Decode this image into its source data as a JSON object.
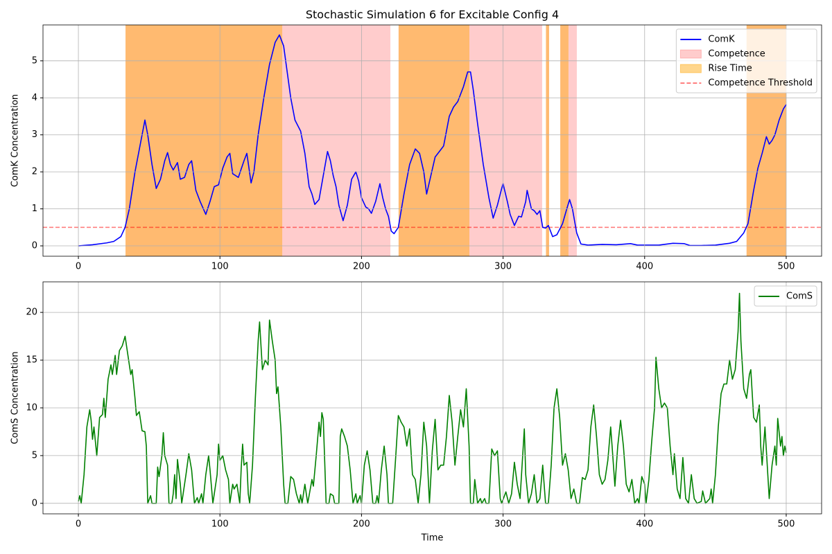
{
  "chart_data": [
    {
      "type": "line",
      "title": "Stochastic Simulation 6 for Excitable Config 4",
      "y_label": "ComK Concentration",
      "x": [
        0,
        10,
        20,
        25,
        30,
        33,
        36,
        40,
        44,
        47,
        49,
        52,
        55,
        58,
        61,
        63,
        65,
        67,
        70,
        72,
        75,
        78,
        80,
        83,
        86,
        90,
        93,
        96,
        99,
        102,
        105,
        107,
        109,
        113,
        117,
        119,
        122,
        124,
        127,
        131,
        135,
        139,
        142,
        145,
        150,
        153,
        157,
        160,
        163,
        165,
        167,
        170,
        173,
        176,
        178,
        180,
        182,
        184,
        187,
        190,
        193,
        196,
        198,
        200,
        203,
        205,
        207,
        210,
        213,
        215,
        217,
        219,
        221,
        223,
        226,
        230,
        234,
        238,
        241,
        244,
        246,
        249,
        252,
        256,
        258,
        262,
        265,
        268,
        272,
        275,
        277,
        279,
        282,
        286,
        290,
        293,
        296,
        299,
        300,
        303,
        305,
        308,
        311,
        313,
        316,
        317,
        320,
        322,
        324,
        326,
        328,
        330,
        332,
        335,
        338,
        342,
        345,
        347,
        349,
        352,
        355,
        360,
        370,
        380,
        390,
        395,
        410,
        420,
        428,
        432,
        440,
        450,
        460,
        465,
        470,
        473,
        477,
        480,
        483,
        486,
        488,
        490,
        492,
        495,
        498,
        500
      ],
      "series": [
        {
          "name": "ComK",
          "color": "#0000ff",
          "values": [
            0,
            0.03,
            0.08,
            0.12,
            0.25,
            0.5,
            1.0,
            2.0,
            2.8,
            3.4,
            3.0,
            2.2,
            1.55,
            1.8,
            2.3,
            2.52,
            2.2,
            2.05,
            2.25,
            1.8,
            1.85,
            2.2,
            2.3,
            1.5,
            1.2,
            0.85,
            1.2,
            1.6,
            1.65,
            2.1,
            2.4,
            2.5,
            1.95,
            1.85,
            2.3,
            2.5,
            1.7,
            2.0,
            3.0,
            4.0,
            4.9,
            5.5,
            5.7,
            5.4,
            4.0,
            3.4,
            3.1,
            2.5,
            1.6,
            1.4,
            1.12,
            1.25,
            1.9,
            2.55,
            2.3,
            1.9,
            1.6,
            1.1,
            0.68,
            1.1,
            1.8,
            2.0,
            1.75,
            1.3,
            1.05,
            1.0,
            0.88,
            1.2,
            1.68,
            1.3,
            1.0,
            0.8,
            0.4,
            0.33,
            0.5,
            1.4,
            2.2,
            2.62,
            2.5,
            2.0,
            1.4,
            1.9,
            2.4,
            2.6,
            2.7,
            3.5,
            3.75,
            3.9,
            4.3,
            4.7,
            4.7,
            4.2,
            3.3,
            2.2,
            1.3,
            0.75,
            1.1,
            1.55,
            1.68,
            1.2,
            0.85,
            0.55,
            0.8,
            0.78,
            1.2,
            1.5,
            1.0,
            0.95,
            0.85,
            0.95,
            0.5,
            0.48,
            0.55,
            0.25,
            0.3,
            0.6,
            1.0,
            1.25,
            1.0,
            0.35,
            0.05,
            0.02,
            0.04,
            0.03,
            0.06,
            0.02,
            0.02,
            0.07,
            0.06,
            0.01,
            0.01,
            0.02,
            0.07,
            0.12,
            0.35,
            0.6,
            1.5,
            2.1,
            2.5,
            2.95,
            2.75,
            2.85,
            3.0,
            3.4,
            3.7,
            3.82
          ]
        }
      ],
      "regions": [
        {
          "name": "Competence",
          "color": "#ff0000",
          "alpha": 0.2,
          "spans": [
            [
              33.3,
              220.4
            ],
            [
              226.2,
              327.6
            ],
            [
              330.3,
              332.5
            ],
            [
              340.4,
              352.1
            ],
            [
              472,
              500
            ]
          ]
        },
        {
          "name": "Rise Time",
          "color": "#ffa500",
          "alpha": 0.45,
          "spans": [
            [
              33.3,
              144
            ],
            [
              226.2,
              276.2
            ],
            [
              330.3,
              332.5
            ],
            [
              340.4,
              346.2
            ],
            [
              472,
              500
            ]
          ]
        }
      ],
      "threshold": {
        "name": "Competence Threshold",
        "value": 0.5,
        "color": "#ff0000"
      },
      "xlim": [
        -25,
        525
      ],
      "xticks": [
        0,
        100,
        200,
        300,
        400,
        500
      ],
      "ylim": [
        -0.28,
        5.97
      ],
      "yticks": [
        0,
        1,
        2,
        3,
        4,
        5
      ],
      "grid": true,
      "legend": "upper right"
    },
    {
      "type": "line",
      "y_label": "ComS Concentration",
      "x_label": "Time",
      "x": [
        0,
        1,
        2,
        4,
        6,
        8,
        9,
        10,
        11,
        13,
        15,
        17,
        18,
        19,
        21,
        23,
        24,
        26,
        27,
        29,
        31,
        33,
        35,
        37,
        38,
        40,
        41,
        43,
        45,
        47,
        48,
        49,
        51,
        52,
        55,
        56,
        57,
        59,
        60,
        61,
        63,
        64,
        66,
        67,
        68,
        69,
        70,
        72,
        73,
        76,
        78,
        80,
        82,
        84,
        85,
        87,
        88,
        90,
        92,
        93,
        95,
        98,
        99,
        100,
        102,
        104,
        106,
        107,
        109,
        110,
        112,
        114,
        115,
        116,
        117,
        119,
        120,
        121,
        123,
        125,
        127,
        128,
        130,
        132,
        134,
        135,
        137,
        139,
        140,
        141,
        143,
        145,
        146,
        148,
        150,
        152,
        154,
        155,
        156,
        157,
        158,
        160,
        162,
        165,
        166,
        168,
        170,
        171,
        172,
        173,
        175,
        177,
        178,
        180,
        181,
        184,
        185,
        186,
        188,
        190,
        192,
        194,
        196,
        197,
        199,
        200,
        202,
        204,
        206,
        208,
        210,
        211,
        212,
        214,
        216,
        218,
        219,
        222,
        224,
        226,
        228,
        230,
        232,
        234,
        236,
        238,
        240,
        242,
        244,
        246,
        248,
        250,
        252,
        254,
        256,
        258,
        260,
        262,
        264,
        266,
        268,
        270,
        272,
        274,
        276,
        277,
        279,
        280,
        282,
        284,
        285,
        287,
        288,
        290,
        292,
        294,
        296,
        298,
        299,
        302,
        304,
        306,
        308,
        310,
        312,
        315,
        316,
        318,
        320,
        322,
        324,
        326,
        328,
        329,
        330,
        332,
        334,
        336,
        338,
        340,
        342,
        344,
        346,
        348,
        350,
        352,
        354,
        356,
        358,
        360,
        362,
        364,
        366,
        368,
        370,
        372,
        374,
        376,
        377,
        379,
        381,
        383,
        385,
        387,
        389,
        391,
        393,
        395,
        396,
        398,
        400,
        401,
        403,
        405,
        407,
        408,
        410,
        412,
        414,
        416,
        418,
        420,
        421,
        423,
        425,
        427,
        429,
        431,
        433,
        435,
        437,
        440,
        441,
        443,
        446,
        447,
        448,
        450,
        452,
        454,
        456,
        458,
        460,
        462,
        464,
        466,
        467,
        468,
        470,
        472,
        474,
        475,
        477,
        479,
        481,
        482,
        483,
        484,
        485,
        487,
        488,
        490,
        492,
        493,
        494,
        496,
        497,
        498,
        499,
        500
      ],
      "series": [
        {
          "name": "ComS",
          "color": "#008000",
          "values": [
            0.2,
            0.8,
            0,
            3,
            8,
            9.8,
            8.7,
            6.7,
            8,
            5,
            9,
            9.3,
            11,
            9,
            13,
            14.5,
            13.5,
            15.5,
            13.5,
            16,
            16.5,
            17.5,
            15.5,
            13.5,
            14,
            11,
            9.2,
            9.6,
            7.6,
            7.5,
            6,
            0,
            0.8,
            0,
            0,
            3.8,
            2.8,
            5,
            7.4,
            5,
            4,
            0,
            0,
            1,
            3,
            0.5,
            4.6,
            2,
            0,
            3,
            5.2,
            3.5,
            0,
            0.6,
            0,
            1,
            0,
            3,
            5,
            3.5,
            0,
            3,
            6.2,
            4.5,
            5,
            3.5,
            2.5,
            0,
            2,
            1.5,
            2,
            0,
            3.6,
            6.2,
            4,
            4.3,
            1,
            0,
            4,
            11,
            17,
            19,
            14,
            15,
            14.5,
            19.2,
            17,
            15,
            11.5,
            12.2,
            8,
            2,
            0,
            0,
            2.8,
            2.5,
            1,
            0.5,
            0,
            0.9,
            0,
            2,
            0,
            2.5,
            1.8,
            5,
            8.5,
            7,
            9.5,
            8.8,
            0,
            0,
            1,
            0.8,
            0,
            0,
            7,
            7.8,
            7,
            6,
            3.5,
            0,
            1,
            0,
            0.8,
            0,
            4,
            5.5,
            3.5,
            0,
            0,
            0.8,
            0,
            3.5,
            6,
            3,
            0,
            0,
            4.5,
            9.2,
            8.5,
            8,
            6,
            7.8,
            3,
            2.5,
            0,
            3,
            8.5,
            6,
            0,
            5.5,
            8.8,
            3.5,
            4,
            4,
            7,
            11.3,
            8.5,
            4,
            7,
            9.8,
            8,
            12,
            6,
            0,
            0,
            2.5,
            0,
            0.5,
            0,
            0.5,
            0,
            0,
            5.7,
            5,
            5.5,
            0.5,
            0,
            1.2,
            0,
            1,
            4.3,
            2,
            0.5,
            7.8,
            3,
            0,
            1,
            3,
            0,
            0.5,
            4,
            2,
            0,
            0,
            4,
            10,
            12,
            9,
            4,
            5.2,
            3.5,
            0.5,
            1.5,
            0,
            0,
            2.7,
            2.5,
            3.5,
            8,
            10.3,
            7,
            3,
            2,
            2.5,
            4.5,
            8,
            6,
            1.8,
            6,
            8.7,
            6,
            2,
            1.2,
            2.5,
            0,
            0.5,
            0,
            2.8,
            2,
            0,
            2.5,
            6.5,
            10,
            15.3,
            12,
            10,
            10.5,
            10,
            6,
            3,
            5.2,
            1.5,
            0.5,
            4.8,
            0.5,
            0,
            3,
            0.5,
            0,
            0.2,
            1.3,
            0,
            0.5,
            1.5,
            0,
            3,
            8,
            11.5,
            12.5,
            12.5,
            15,
            13,
            14,
            18,
            22,
            17,
            12,
            11,
            13.5,
            14,
            9,
            8.5,
            10.3,
            6,
            4,
            6,
            8,
            3,
            0.5,
            4,
            6,
            4,
            8.9,
            6,
            7,
            5,
            6,
            5.3
          ]
        }
      ],
      "xlim": [
        -25,
        525
      ],
      "xticks": [
        0,
        100,
        200,
        300,
        400,
        500
      ],
      "ylim": [
        -1.1,
        23.2
      ],
      "yticks": [
        0,
        5,
        10,
        15,
        20
      ],
      "grid": true,
      "legend": "upper right"
    }
  ]
}
